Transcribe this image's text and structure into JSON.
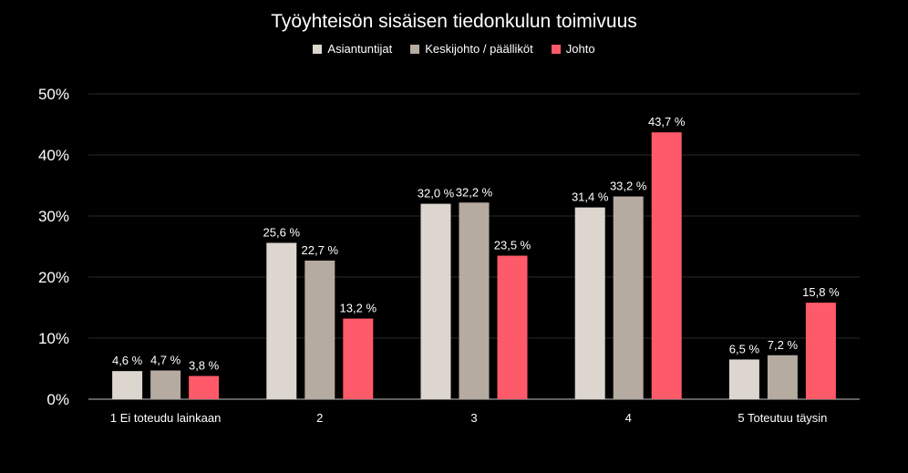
{
  "chart_data": {
    "type": "bar",
    "title": "Työyhteisön sisäisen tiedonkulun toimivuus",
    "categories": [
      "1 Ei toteudu lainkaan",
      "2",
      "3",
      "4",
      "5 Toteutuu täysin"
    ],
    "series": [
      {
        "name": "Asiantuntijat",
        "color": "#dcd6cf",
        "values": [
          4.6,
          25.6,
          32.0,
          31.4,
          6.5
        ],
        "labels": [
          "4,6 %",
          "25,6 %",
          "32,0 %",
          "31,4 %",
          "6,5 %"
        ]
      },
      {
        "name": "Keskijohto / päälliköt",
        "color": "#b5aba0",
        "values": [
          4.7,
          22.7,
          32.2,
          33.2,
          7.2
        ],
        "labels": [
          "4,7 %",
          "22,7 %",
          "32,2 %",
          "33,2 %",
          "7,2 %"
        ]
      },
      {
        "name": "Johto",
        "color": "#ff5a6a",
        "values": [
          3.8,
          13.2,
          23.5,
          43.7,
          15.8
        ],
        "labels": [
          "3,8 %",
          "13,2 %",
          "23,5 %",
          "43,7 %",
          "15,8 %"
        ]
      }
    ],
    "yticks": [
      0,
      10,
      20,
      30,
      40,
      50
    ],
    "ytick_labels": [
      "0%",
      "10%",
      "20%",
      "30%",
      "40%",
      "50%"
    ],
    "ylim": [
      0,
      50
    ],
    "xlabel": "",
    "ylabel": "",
    "legend_position": "top",
    "grid": true,
    "grid_color": "#2a2a2a",
    "axis_color": "#bfbfbf",
    "background": "#000000"
  }
}
